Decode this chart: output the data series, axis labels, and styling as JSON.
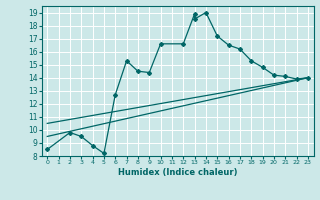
{
  "xlabel": "Humidex (Indice chaleur)",
  "xlim": [
    -0.5,
    23.5
  ],
  "ylim": [
    8,
    19.5
  ],
  "yticks": [
    8,
    9,
    10,
    11,
    12,
    13,
    14,
    15,
    16,
    17,
    18,
    19
  ],
  "xticks": [
    0,
    1,
    2,
    3,
    4,
    5,
    6,
    7,
    8,
    9,
    10,
    11,
    12,
    13,
    14,
    15,
    16,
    17,
    18,
    19,
    20,
    21,
    22,
    23
  ],
  "bg_color": "#cce8e8",
  "grid_color": "#ffffff",
  "line_color": "#006666",
  "line1_x": [
    0,
    2,
    3,
    4,
    5,
    6,
    7,
    8,
    9,
    10,
    12,
    13,
    13,
    14,
    15,
    16,
    17,
    18,
    19,
    20,
    21,
    22,
    23
  ],
  "line1_y": [
    8.5,
    9.8,
    9.5,
    8.8,
    8.2,
    12.7,
    15.3,
    14.5,
    14.4,
    16.6,
    16.6,
    18.9,
    18.5,
    19.0,
    17.2,
    16.5,
    16.2,
    15.3,
    14.8,
    14.2,
    14.1,
    13.9,
    14.0
  ],
  "line2_x": [
    0,
    23
  ],
  "line2_y": [
    9.5,
    14.0
  ],
  "line3_x": [
    0,
    23
  ],
  "line3_y": [
    10.5,
    14.0
  ]
}
